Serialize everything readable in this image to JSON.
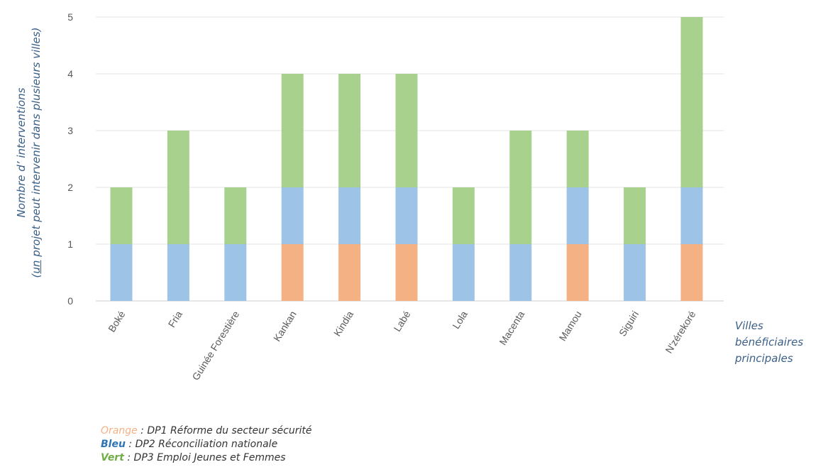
{
  "chart_data": {
    "type": "bar",
    "stacked": true,
    "ylabel_line1": "Nombre d’  interventions",
    "ylabel_line2_pre": "(",
    "ylabel_line2_un": "un",
    "ylabel_line2_post": " projet peut intervenir dans plusieurs villes)",
    "xlabel": "Villes bénéficiaires principales",
    "ylim": [
      0,
      5
    ],
    "yticks": [
      0,
      1,
      2,
      3,
      4,
      5
    ],
    "grid": true,
    "categories": [
      "Boké",
      "Fria",
      "Guinée Forestière",
      "Kankan",
      "Kindia",
      "Labé",
      "Lola",
      "Macenta",
      "Mamou",
      "Siguiri",
      "N'zérekoré"
    ],
    "series": [
      {
        "name": "DP1 Réforme du secteur sécurité",
        "color": "#f4b183",
        "values": [
          0,
          0,
          0,
          1,
          1,
          1,
          0,
          0,
          1,
          0,
          1
        ]
      },
      {
        "name": "DP2 Réconciliation nationale",
        "color": "#9dc3e6",
        "values": [
          1,
          1,
          1,
          1,
          1,
          1,
          1,
          1,
          1,
          1,
          1
        ]
      },
      {
        "name": "DP3 Emploi Jeunes et Femmes",
        "color": "#a9d18e",
        "values": [
          1,
          2,
          1,
          2,
          2,
          2,
          1,
          2,
          1,
          1,
          3
        ]
      }
    ]
  },
  "legend": [
    {
      "key": "Orange",
      "sep": " : ",
      "text": "DP1 Réforme du secteur sécurité",
      "key_color": "#f4b183"
    },
    {
      "key": "Bleu",
      "sep": " : ",
      "text": "DP2 Réconciliation nationale",
      "key_color": "#2e75b6"
    },
    {
      "key": "Vert",
      "sep": " : ",
      "text": "DP3 Emploi Jeunes et Femmes",
      "key_color": "#70ad47"
    }
  ]
}
